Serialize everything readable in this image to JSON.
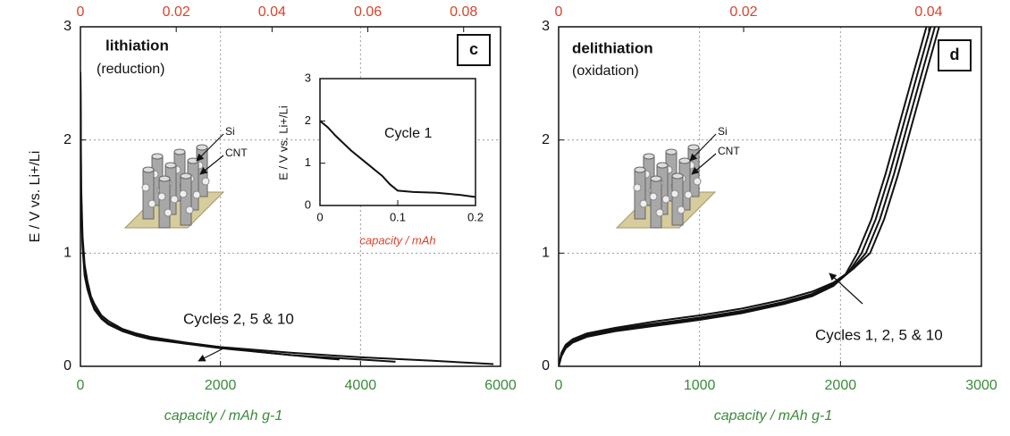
{
  "chart_data": [
    {
      "type": "line",
      "x_label": "capacity / mAh g-1",
      "y_label": "E / V vs. Li+/Li",
      "xlim": [
        0,
        6000
      ],
      "xticks": [
        0,
        2000,
        4000,
        6000
      ],
      "x2lim": [
        0,
        0.0877
      ],
      "x2ticks": [
        0,
        0.02,
        0.04,
        0.06,
        0.08
      ],
      "ylim": [
        0,
        3
      ],
      "yticks": [
        0,
        1,
        2,
        3
      ],
      "grid": true,
      "annotations": [
        "lithiation",
        "(reduction)",
        "c",
        "Si",
        "CNT",
        "Cycles 2, 5 & 10"
      ],
      "series": [
        {
          "color": "#111111",
          "x": [
            0,
            10,
            30,
            60,
            100,
            150,
            200,
            300,
            400,
            600,
            800,
            1000,
            1500,
            2000,
            2500,
            3000,
            3500,
            3700
          ],
          "values": [
            2.6,
            1.6,
            1.15,
            0.9,
            0.75,
            0.62,
            0.55,
            0.45,
            0.4,
            0.33,
            0.29,
            0.26,
            0.21,
            0.17,
            0.13,
            0.1,
            0.07,
            0.06
          ]
        },
        {
          "color": "#111111",
          "x": [
            0,
            10,
            30,
            60,
            100,
            150,
            200,
            300,
            400,
            600,
            800,
            1000,
            1500,
            2000,
            2500,
            3000,
            3500,
            4000,
            4500
          ],
          "values": [
            2.6,
            1.5,
            1.1,
            0.85,
            0.7,
            0.6,
            0.52,
            0.43,
            0.38,
            0.32,
            0.28,
            0.25,
            0.2,
            0.16,
            0.13,
            0.1,
            0.08,
            0.06,
            0.04
          ]
        },
        {
          "color": "#111111",
          "x": [
            0,
            10,
            30,
            60,
            100,
            150,
            200,
            300,
            400,
            600,
            800,
            1000,
            1500,
            2000,
            3000,
            4000,
            5000,
            5900
          ],
          "values": [
            2.6,
            1.4,
            1.05,
            0.8,
            0.68,
            0.58,
            0.5,
            0.42,
            0.37,
            0.31,
            0.27,
            0.24,
            0.2,
            0.17,
            0.12,
            0.08,
            0.05,
            0.02
          ]
        }
      ]
    },
    {
      "type": "line",
      "x_label": "capacity / mAh",
      "y_label": "E / V vs. Li+/Li",
      "xlim": [
        0,
        0.2
      ],
      "xticks": [
        0,
        0.1,
        0.2
      ],
      "ylim": [
        0,
        3
      ],
      "yticks": [
        0,
        1,
        2,
        3
      ],
      "grid": false,
      "annotations": [
        "Cycle 1"
      ],
      "series": [
        {
          "color": "#111111",
          "x": [
            0,
            0.01,
            0.02,
            0.04,
            0.06,
            0.08,
            0.09,
            0.1,
            0.12,
            0.15,
            0.18,
            0.2
          ],
          "values": [
            2.0,
            1.85,
            1.65,
            1.3,
            1.0,
            0.7,
            0.5,
            0.35,
            0.32,
            0.3,
            0.25,
            0.2
          ]
        }
      ]
    },
    {
      "type": "line",
      "x_label": "capacity / mAh g-1",
      "xlim": [
        0,
        3000
      ],
      "xticks": [
        0,
        1000,
        2000,
        3000
      ],
      "x2lim": [
        0,
        0.0457
      ],
      "x2ticks": [
        0,
        0.02,
        0.04
      ],
      "ylim": [
        0,
        3
      ],
      "yticks": [
        0,
        1,
        2,
        3
      ],
      "grid": true,
      "annotations": [
        "delithiation",
        "(oxidation)",
        "d",
        "Si",
        "CNT",
        "Cycles 1, 2, 5 & 10"
      ],
      "series": [
        {
          "color": "#111111",
          "x": [
            0,
            20,
            50,
            100,
            200,
            400,
            700,
            1000,
            1300,
            1600,
            1800,
            1950,
            2050,
            2150,
            2250,
            2350,
            2450,
            2550,
            2640
          ],
          "values": [
            0,
            0.1,
            0.17,
            0.22,
            0.27,
            0.32,
            0.37,
            0.42,
            0.48,
            0.56,
            0.63,
            0.72,
            0.82,
            1.0,
            1.3,
            1.7,
            2.15,
            2.6,
            3.0
          ]
        },
        {
          "color": "#111111",
          "x": [
            0,
            20,
            50,
            100,
            200,
            400,
            700,
            1000,
            1300,
            1600,
            1800,
            1950,
            2070,
            2180,
            2280,
            2380,
            2480,
            2580,
            2670
          ],
          "values": [
            0,
            0.11,
            0.18,
            0.23,
            0.28,
            0.33,
            0.38,
            0.43,
            0.49,
            0.57,
            0.64,
            0.73,
            0.84,
            1.0,
            1.3,
            1.7,
            2.15,
            2.6,
            3.0
          ]
        },
        {
          "color": "#111111",
          "x": [
            0,
            20,
            50,
            100,
            200,
            400,
            700,
            1000,
            1300,
            1600,
            1800,
            1950,
            2090,
            2210,
            2310,
            2410,
            2510,
            2610,
            2700
          ],
          "values": [
            0,
            0.12,
            0.19,
            0.24,
            0.29,
            0.34,
            0.4,
            0.45,
            0.51,
            0.59,
            0.66,
            0.74,
            0.86,
            1.0,
            1.3,
            1.7,
            2.15,
            2.6,
            3.0
          ]
        },
        {
          "color": "#111111",
          "x": [
            0,
            20,
            50,
            100,
            200,
            400,
            700,
            1000,
            1300,
            1600,
            1800,
            1950,
            2030,
            2120,
            2220,
            2320,
            2420,
            2520,
            2610
          ],
          "values": [
            0,
            0.09,
            0.16,
            0.21,
            0.26,
            0.31,
            0.36,
            0.41,
            0.47,
            0.55,
            0.62,
            0.71,
            0.8,
            1.0,
            1.3,
            1.7,
            2.15,
            2.6,
            3.0
          ]
        }
      ]
    }
  ]
}
